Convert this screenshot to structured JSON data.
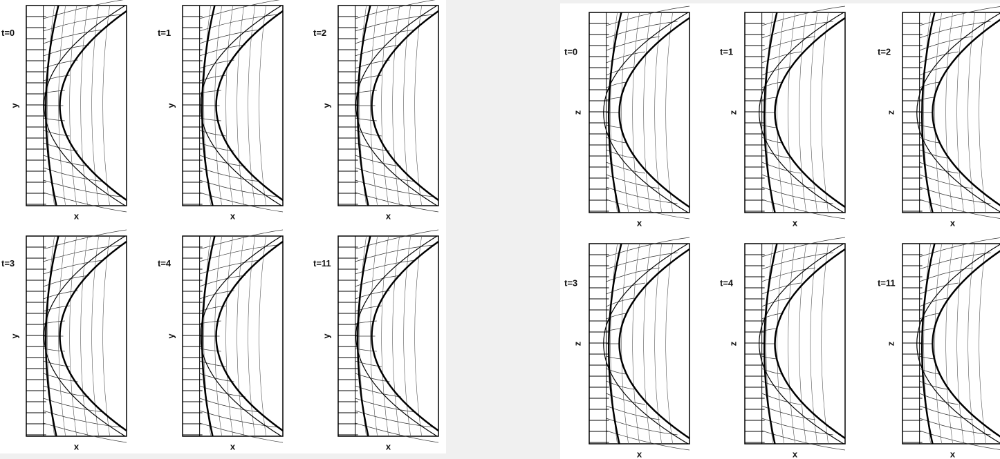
{
  "figures": [
    {
      "panels": [
        {
          "label": "t=0",
          "y_axis": "y",
          "x_axis": "x"
        },
        {
          "label": "t=1",
          "y_axis": "y",
          "x_axis": "x"
        },
        {
          "label": "t=2",
          "y_axis": "y",
          "x_axis": "x"
        },
        {
          "label": "t=3",
          "y_axis": "y",
          "x_axis": "x"
        },
        {
          "label": "t=4",
          "y_axis": "y",
          "x_axis": "x"
        },
        {
          "label": "t=11",
          "y_axis": "y",
          "x_axis": "x"
        }
      ]
    },
    {
      "panels": [
        {
          "label": "t=0",
          "y_axis": "z",
          "x_axis": "x"
        },
        {
          "label": "t=1",
          "y_axis": "z",
          "x_axis": "x"
        },
        {
          "label": "t=2",
          "y_axis": "z",
          "x_axis": "x"
        },
        {
          "label": "t=3",
          "y_axis": "z",
          "x_axis": "x"
        },
        {
          "label": "t=4",
          "y_axis": "z",
          "x_axis": "x"
        },
        {
          "label": "t=11",
          "y_axis": "z",
          "x_axis": "x"
        }
      ]
    }
  ]
}
